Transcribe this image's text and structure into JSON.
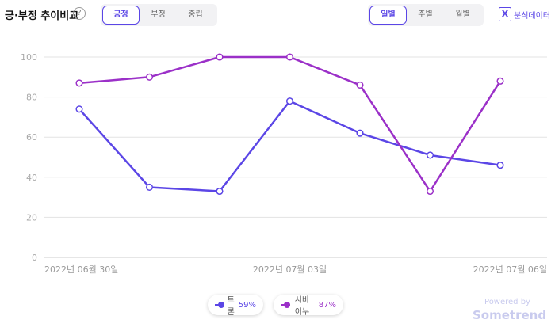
{
  "header": {
    "title": "긍·부정 추이비교",
    "help_glyph": "?",
    "sentiment_tabs": [
      {
        "label": "긍정",
        "active": true
      },
      {
        "label": "부정",
        "active": false
      },
      {
        "label": "중립",
        "active": false
      }
    ],
    "period_tabs": [
      {
        "label": "일별",
        "active": true
      },
      {
        "label": "주별",
        "active": false
      },
      {
        "label": "월별",
        "active": false
      }
    ],
    "export_label": "분석데이터",
    "export_icon": "excel-icon"
  },
  "chart_data": {
    "type": "line",
    "x": [
      "2022-06-30",
      "2022-07-01",
      "2022-07-02",
      "2022-07-03",
      "2022-07-04",
      "2022-07-05",
      "2022-07-06"
    ],
    "x_tick_labels": [
      {
        "index": 0,
        "label": "2022년 06월 30일"
      },
      {
        "index": 3,
        "label": "2022년 07월 03일"
      },
      {
        "index": 6,
        "label": "2022년 07월 06일"
      }
    ],
    "ylim": [
      0,
      100
    ],
    "yticks": [
      0,
      20,
      40,
      60,
      80,
      100
    ],
    "grid": true,
    "series": [
      {
        "name": "트론",
        "color": "#5b46e6",
        "values": [
          74,
          35,
          33,
          78,
          62,
          51,
          46
        ],
        "legend_value": "59%"
      },
      {
        "name": "시바이누",
        "color": "#9b30c8",
        "values": [
          87,
          90,
          100,
          100,
          86,
          33,
          88
        ],
        "legend_value": "87%"
      }
    ]
  },
  "footer": {
    "powered_by": "Powered by",
    "brand": "Sometrend"
  }
}
